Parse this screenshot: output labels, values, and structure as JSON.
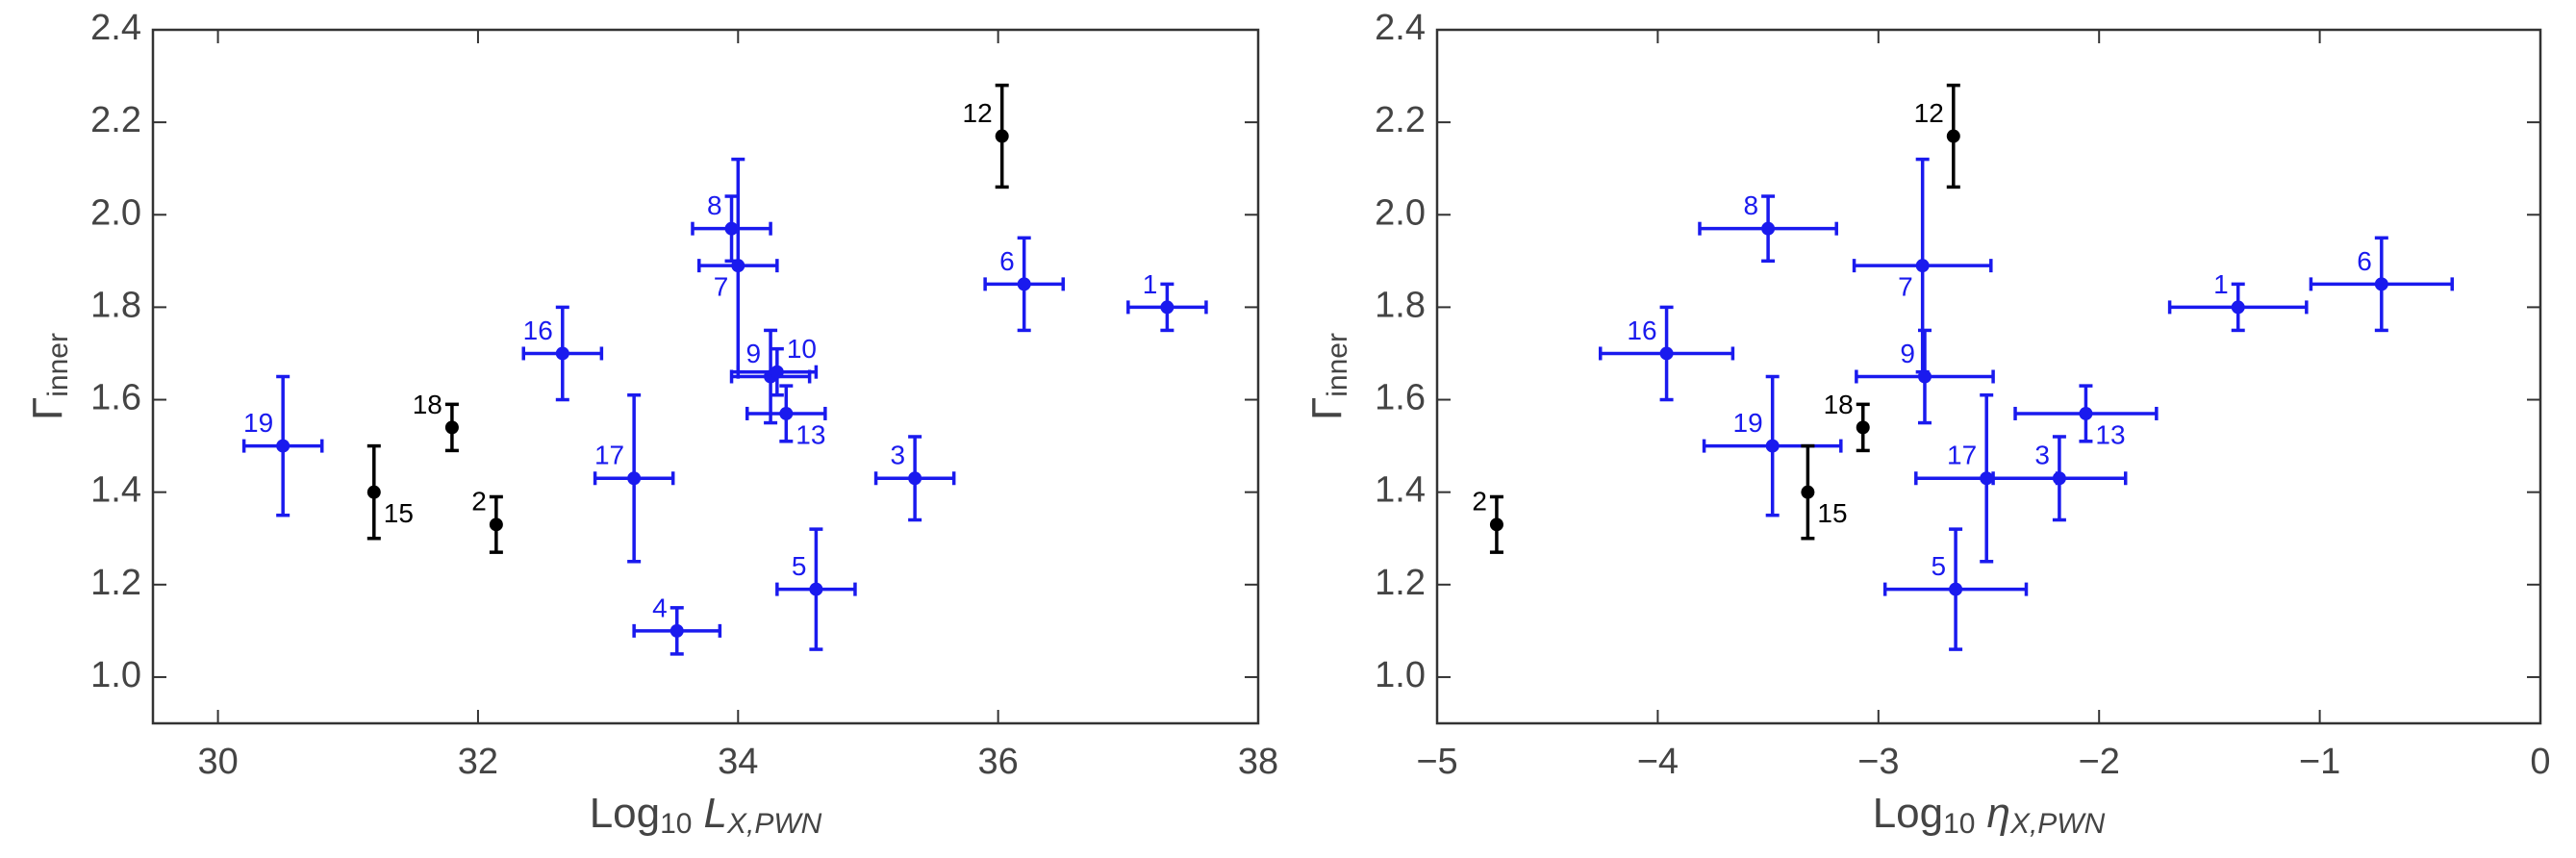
{
  "chart_data": [
    {
      "type": "scatter",
      "xlabel": [
        "Log",
        "10",
        "L",
        "X,PWN"
      ],
      "ylabel": [
        "Γ",
        "inner"
      ],
      "xlim": [
        29.5,
        38
      ],
      "ylim": [
        0.9,
        2.4
      ],
      "xticks": [
        30,
        32,
        34,
        36,
        38
      ],
      "yticks": [
        {
          "value": 1,
          "label": "1.0"
        },
        1.2,
        1.4,
        1.6,
        1.8,
        {
          "value": 2,
          "label": "2.0"
        },
        2.2,
        2.4
      ],
      "series": [
        {
          "color": "#1a1aee",
          "labels": [
            "19",
            "16",
            "17",
            "4",
            "8",
            "7",
            "9",
            "10",
            "13",
            "5",
            "3",
            "6",
            "1"
          ],
          "x": [
            30.5,
            32.65,
            33.2,
            33.53,
            33.95,
            34.0,
            34.25,
            34.3,
            34.37,
            34.6,
            35.36,
            36.2,
            37.3
          ],
          "xerr": [
            0.3,
            0.3,
            0.3,
            0.33,
            0.3,
            0.3,
            0.3,
            0.3,
            0.3,
            0.3,
            0.3,
            0.3,
            0.3
          ],
          "values": [
            1.5,
            1.7,
            1.43,
            1.1,
            1.97,
            1.89,
            1.65,
            1.66,
            1.57,
            1.19,
            1.43,
            1.85,
            1.8
          ],
          "yerr": [
            0.15,
            0.1,
            0.18,
            0.05,
            0.07,
            0.23,
            0.1,
            0.05,
            0.06,
            0.13,
            0.09,
            0.1,
            0.05
          ]
        },
        {
          "color": "#000000",
          "labels": [
            "15",
            "18",
            "2",
            "12"
          ],
          "x": [
            31.2,
            31.8,
            32.14,
            36.03
          ],
          "values": [
            1.4,
            1.54,
            1.33,
            2.17
          ],
          "yerr": [
            0.1,
            0.05,
            0.06,
            0.11
          ]
        }
      ]
    },
    {
      "type": "scatter",
      "xlabel": [
        "Log",
        "10",
        "η",
        "X,PWN"
      ],
      "ylabel": [
        "Γ",
        "inner"
      ],
      "xlim": [
        -5,
        0
      ],
      "ylim": [
        0.9,
        2.4
      ],
      "xticks": [
        {
          "value": -5,
          "label": "−5"
        },
        {
          "value": -4,
          "label": "−4"
        },
        {
          "value": -3,
          "label": "−3"
        },
        {
          "value": -2,
          "label": "−2"
        },
        {
          "value": -1,
          "label": "−1"
        },
        0
      ],
      "yticks": [
        {
          "value": 1,
          "label": "1.0"
        },
        1.2,
        1.4,
        1.6,
        1.8,
        {
          "value": 2,
          "label": "2.0"
        },
        2.2,
        2.4
      ],
      "series": [
        {
          "color": "#1a1aee",
          "labels": [
            "16",
            "8",
            "19",
            "7",
            "9",
            "5",
            "17",
            "3",
            "13",
            "1",
            "6"
          ],
          "x": [
            -3.96,
            -3.5,
            -3.48,
            -2.8,
            -2.79,
            -2.65,
            -2.51,
            -2.18,
            -2.06,
            -1.37,
            -0.72
          ],
          "xerr": [
            0.3,
            0.31,
            0.31,
            0.31,
            0.31,
            0.32,
            0.32,
            0.3,
            0.32,
            0.31,
            0.32
          ],
          "values": [
            1.7,
            1.97,
            1.5,
            1.89,
            1.65,
            1.19,
            1.43,
            1.43,
            1.57,
            1.8,
            1.85
          ],
          "yerr": [
            0.1,
            0.07,
            0.15,
            0.23,
            0.1,
            0.13,
            0.18,
            0.09,
            0.06,
            0.05,
            0.1
          ]
        },
        {
          "color": "#000000",
          "labels": [
            "2",
            "15",
            "18",
            "12"
          ],
          "x": [
            -4.73,
            -3.32,
            -3.07,
            -2.66
          ],
          "values": [
            1.33,
            1.4,
            1.54,
            2.17
          ],
          "yerr": [
            0.06,
            0.1,
            0.05,
            0.11
          ]
        }
      ]
    }
  ]
}
